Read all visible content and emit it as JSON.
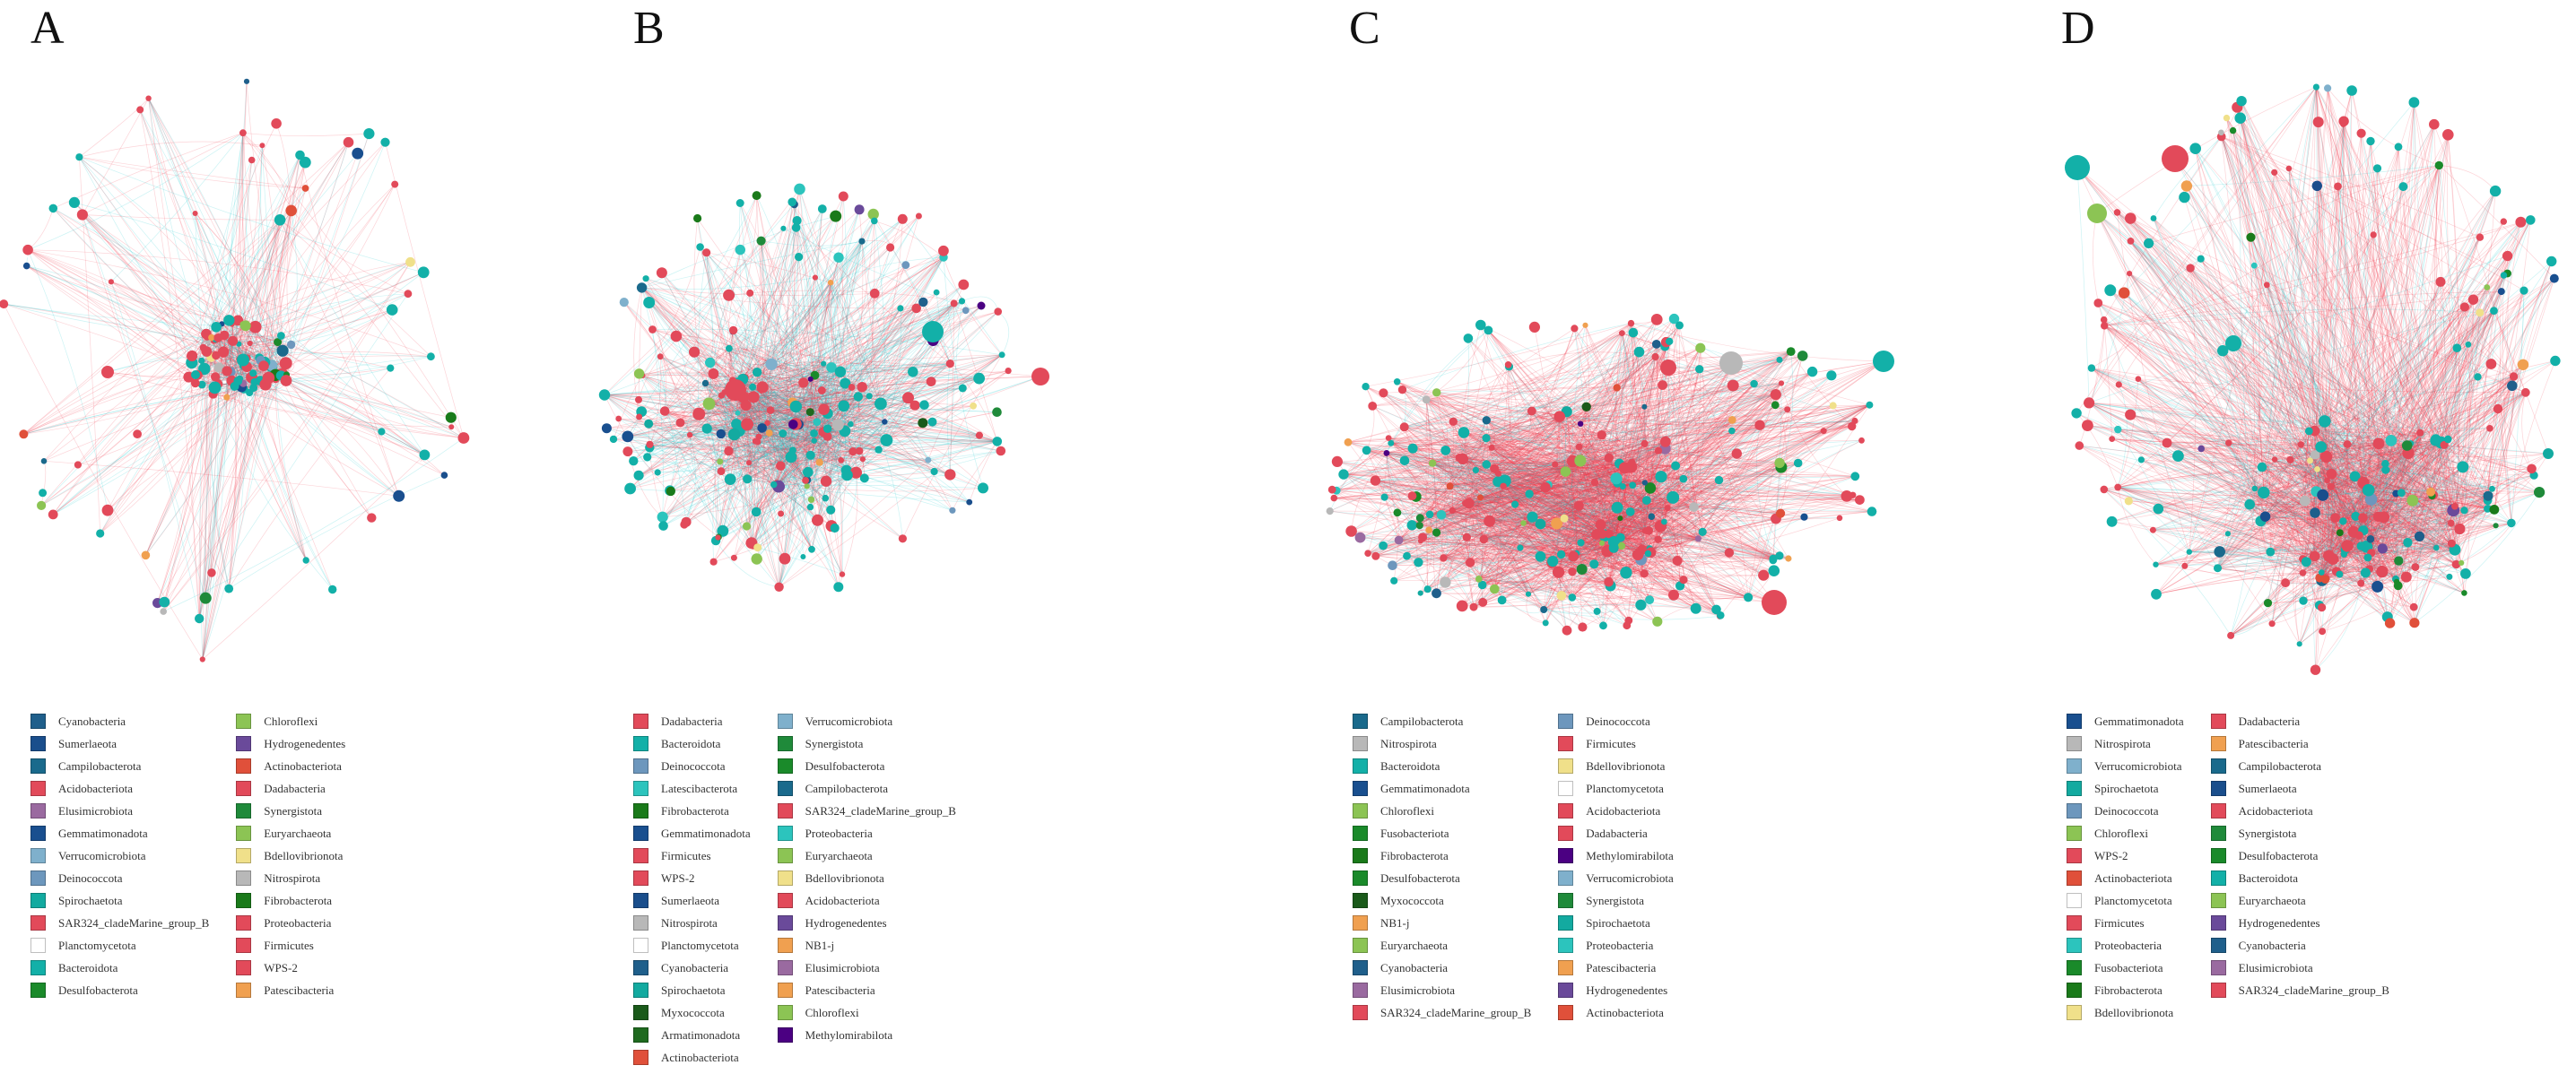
{
  "colors": {
    "edge_pos": "#f03b4f",
    "edge_neg": "#18c9cf"
  },
  "panels": [
    {
      "letter": "A",
      "legend": {
        "col1": [
          {
            "label": "Cyanobacteria",
            "color": "#1f5f8b"
          },
          {
            "label": "Sumerlaeota",
            "color": "#1a4e8c"
          },
          {
            "label": "Campilobacterota",
            "color": "#1a6a8c"
          },
          {
            "label": "Acidobacteriota",
            "color": "#e24a5a"
          },
          {
            "label": "Elusimicrobiota",
            "color": "#9a6aa0"
          },
          {
            "label": "Gemmatimonadota",
            "color": "#194f8f"
          },
          {
            "label": "Verrucomicrobiota",
            "color": "#7fb0cc"
          },
          {
            "label": "Deinococcota",
            "color": "#6d97bd"
          },
          {
            "label": "Spirochaetota",
            "color": "#13aaa0"
          },
          {
            "label": "SAR324_cladeMarine_group_B",
            "color": "#e24a5a"
          },
          {
            "label": "Planctomycetota",
            "color": "#ffffff"
          },
          {
            "label": "Bacteroidota",
            "color": "#13b0a8"
          },
          {
            "label": "Desulfobacterota",
            "color": "#1a8a2a"
          }
        ],
        "col2": [
          {
            "label": "Chloroflexi",
            "color": "#8cc454"
          },
          {
            "label": "Hydrogenedentes",
            "color": "#6a4a9a"
          },
          {
            "label": "Actinobacteriota",
            "color": "#e0503a"
          },
          {
            "label": "Dadabacteria",
            "color": "#e24a5a"
          },
          {
            "label": "Synergistota",
            "color": "#1f8a3a"
          },
          {
            "label": "Euryarchaeota",
            "color": "#8cc454"
          },
          {
            "label": "Bdellovibrionota",
            "color": "#f0e08a"
          },
          {
            "label": "Nitrospirota",
            "color": "#b8b8b8"
          },
          {
            "label": "Fibrobacterota",
            "color": "#1a7a1a"
          },
          {
            "label": "Proteobacteria",
            "color": "#e24a5a"
          },
          {
            "label": "Firmicutes",
            "color": "#e24a5a"
          },
          {
            "label": "WPS-2",
            "color": "#e24a5a"
          },
          {
            "label": "Patescibacteria",
            "color": "#f0a050"
          }
        ]
      }
    },
    {
      "letter": "B",
      "legend": {
        "col1": [
          {
            "label": "Dadabacteria",
            "color": "#e24a5a"
          },
          {
            "label": "Bacteroidota",
            "color": "#13b0a8"
          },
          {
            "label": "Deinococcota",
            "color": "#6d97bd"
          },
          {
            "label": "Latescibacterota",
            "color": "#2cc4bd"
          },
          {
            "label": "Fibrobacterota",
            "color": "#1a7a1a"
          },
          {
            "label": "Gemmatimonadota",
            "color": "#194f8f"
          },
          {
            "label": "Firmicutes",
            "color": "#e24a5a"
          },
          {
            "label": "WPS-2",
            "color": "#e24a5a"
          },
          {
            "label": "Sumerlaeota",
            "color": "#1a4e8c"
          },
          {
            "label": "Nitrospirota",
            "color": "#b8b8b8"
          },
          {
            "label": "Planctomycetota",
            "color": "#ffffff"
          },
          {
            "label": "Cyanobacteria",
            "color": "#1f5f8b"
          },
          {
            "label": "Spirochaetota",
            "color": "#13aaa0"
          },
          {
            "label": "Myxococcota",
            "color": "#1a5a1a"
          },
          {
            "label": "Armatimonadota",
            "color": "#1f6a1f"
          },
          {
            "label": "Actinobacteriota",
            "color": "#e0503a"
          }
        ],
        "col2": [
          {
            "label": "Verrucomicrobiota",
            "color": "#7fb0cc"
          },
          {
            "label": "Synergistota",
            "color": "#1f8a3a"
          },
          {
            "label": "Desulfobacterota",
            "color": "#1a8a2a"
          },
          {
            "label": "Campilobacterota",
            "color": "#1a6a8c"
          },
          {
            "label": "SAR324_cladeMarine_group_B",
            "color": "#e24a5a"
          },
          {
            "label": "Proteobacteria",
            "color": "#2cc4bd"
          },
          {
            "label": "Euryarchaeota",
            "color": "#8cc454"
          },
          {
            "label": "Bdellovibrionota",
            "color": "#f0e08a"
          },
          {
            "label": "Acidobacteriota",
            "color": "#e24a5a"
          },
          {
            "label": "Hydrogenedentes",
            "color": "#6a4a9a"
          },
          {
            "label": "NB1-j",
            "color": "#f0a050"
          },
          {
            "label": "Elusimicrobiota",
            "color": "#9a6aa0"
          },
          {
            "label": "Patescibacteria",
            "color": "#f0a050"
          },
          {
            "label": "Chloroflexi",
            "color": "#8cc454"
          },
          {
            "label": "Methylomirabilota",
            "color": "#4b0082"
          }
        ]
      }
    },
    {
      "letter": "C",
      "legend": {
        "col1": [
          {
            "label": "Campilobacterota",
            "color": "#1a6a8c"
          },
          {
            "label": "Nitrospirota",
            "color": "#b8b8b8"
          },
          {
            "label": "Bacteroidota",
            "color": "#13b0a8"
          },
          {
            "label": "Gemmatimonadota",
            "color": "#194f8f"
          },
          {
            "label": "Chloroflexi",
            "color": "#8cc454"
          },
          {
            "label": "Fusobacteriota",
            "color": "#1a8a2a"
          },
          {
            "label": "Fibrobacterota",
            "color": "#1a7a1a"
          },
          {
            "label": "Desulfobacterota",
            "color": "#1a8a2a"
          },
          {
            "label": "Myxococcota",
            "color": "#1a5a1a"
          },
          {
            "label": "NB1-j",
            "color": "#f0a050"
          },
          {
            "label": "Euryarchaeota",
            "color": "#8cc454"
          },
          {
            "label": "Cyanobacteria",
            "color": "#1f5f8b"
          },
          {
            "label": "Elusimicrobiota",
            "color": "#9a6aa0"
          },
          {
            "label": "SAR324_cladeMarine_group_B",
            "color": "#e24a5a"
          }
        ],
        "col2": [
          {
            "label": "Deinococcota",
            "color": "#6d97bd"
          },
          {
            "label": "Firmicutes",
            "color": "#e24a5a"
          },
          {
            "label": "Bdellovibrionota",
            "color": "#f0e08a"
          },
          {
            "label": "Planctomycetota",
            "color": "#ffffff"
          },
          {
            "label": "Acidobacteriota",
            "color": "#e24a5a"
          },
          {
            "label": "Dadabacteria",
            "color": "#e24a5a"
          },
          {
            "label": "Methylomirabilota",
            "color": "#4b0082"
          },
          {
            "label": "Verrucomicrobiota",
            "color": "#7fb0cc"
          },
          {
            "label": "Synergistota",
            "color": "#1f8a3a"
          },
          {
            "label": "Spirochaetota",
            "color": "#13aaa0"
          },
          {
            "label": "Proteobacteria",
            "color": "#2cc4bd"
          },
          {
            "label": "Patescibacteria",
            "color": "#f0a050"
          },
          {
            "label": "Hydrogenedentes",
            "color": "#6a4a9a"
          },
          {
            "label": "Actinobacteriota",
            "color": "#e0503a"
          }
        ]
      }
    },
    {
      "letter": "D",
      "legend": {
        "col1": [
          {
            "label": "Gemmatimonadota",
            "color": "#194f8f"
          },
          {
            "label": "Nitrospirota",
            "color": "#b8b8b8"
          },
          {
            "label": "Verrucomicrobiota",
            "color": "#7fb0cc"
          },
          {
            "label": "Spirochaetota",
            "color": "#13aaa0"
          },
          {
            "label": "Deinococcota",
            "color": "#6d97bd"
          },
          {
            "label": "Chloroflexi",
            "color": "#8cc454"
          },
          {
            "label": "WPS-2",
            "color": "#e24a5a"
          },
          {
            "label": "Actinobacteriota",
            "color": "#e0503a"
          },
          {
            "label": "Planctomycetota",
            "color": "#ffffff"
          },
          {
            "label": "Firmicutes",
            "color": "#e24a5a"
          },
          {
            "label": "Proteobacteria",
            "color": "#2cc4bd"
          },
          {
            "label": "Fusobacteriota",
            "color": "#1a8a2a"
          },
          {
            "label": "Fibrobacterota",
            "color": "#1a7a1a"
          },
          {
            "label": "Bdellovibrionota",
            "color": "#f0e08a"
          }
        ],
        "col2": [
          {
            "label": "Dadabacteria",
            "color": "#e24a5a"
          },
          {
            "label": "Patescibacteria",
            "color": "#f0a050"
          },
          {
            "label": "Campilobacterota",
            "color": "#1a6a8c"
          },
          {
            "label": "Sumerlaeota",
            "color": "#1a4e8c"
          },
          {
            "label": "Acidobacteriota",
            "color": "#e24a5a"
          },
          {
            "label": "Synergistota",
            "color": "#1f8a3a"
          },
          {
            "label": "Desulfobacterota",
            "color": "#1a8a2a"
          },
          {
            "label": "Bacteroidota",
            "color": "#13b0a8"
          },
          {
            "label": "Euryarchaeota",
            "color": "#8cc454"
          },
          {
            "label": "Hydrogenedentes",
            "color": "#6a4a9a"
          },
          {
            "label": "Cyanobacteria",
            "color": "#1f5f8b"
          },
          {
            "label": "Elusimicrobiota",
            "color": "#9a6aa0"
          },
          {
            "label": "SAR324_cladeMarine_group_B",
            "color": "#e24a5a"
          }
        ]
      }
    }
  ]
}
